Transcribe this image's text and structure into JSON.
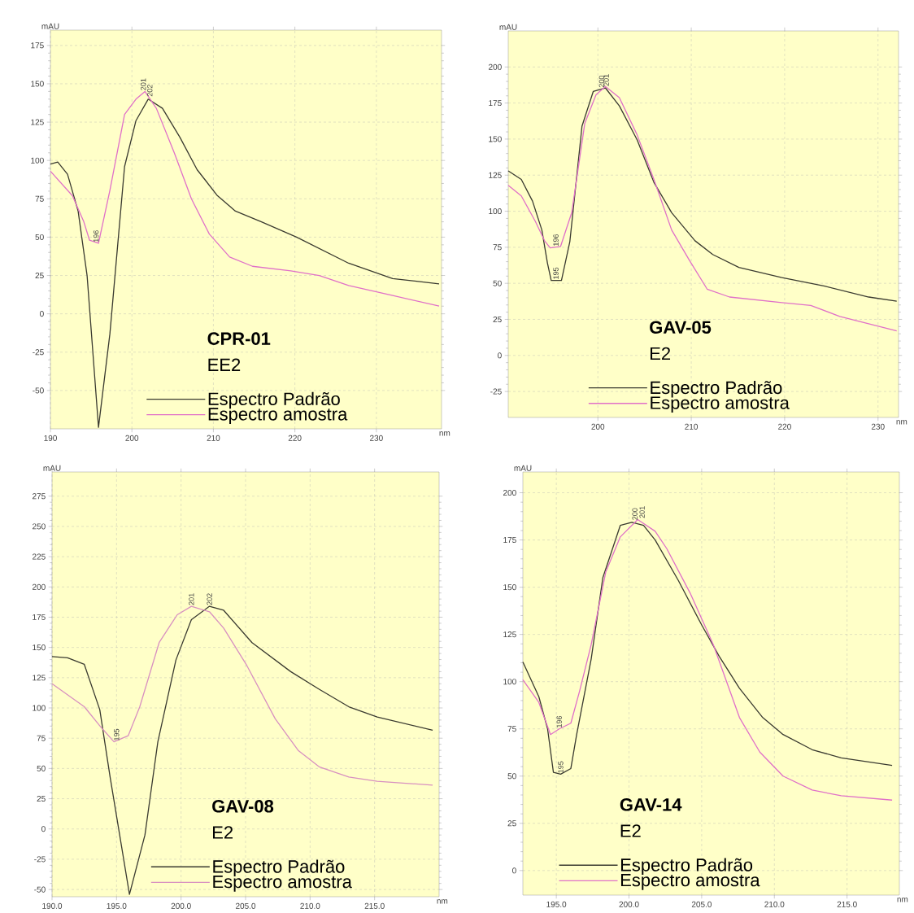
{
  "chart_data": [
    {
      "type": "line",
      "title": "CPR-01",
      "subtitle": "EE2",
      "xlabel": "nm",
      "ylabel": "mAU",
      "xlim": [
        190,
        238
      ],
      "ylim": [
        -75,
        185
      ],
      "xticks": [
        190,
        200,
        210,
        220,
        230
      ],
      "yticks": [
        -50,
        -25,
        0,
        25,
        50,
        75,
        100,
        125,
        150,
        175
      ],
      "grid": true,
      "legend": "bottom",
      "series": [
        {
          "name": "Espectro Padrão",
          "color": "#3a3a30",
          "x": [
            190,
            190.9,
            192.1,
            193.4,
            194.5,
            195.9,
            197.3,
            199.1,
            200.5,
            202,
            203.75,
            205.9,
            208,
            210.5,
            212.7,
            215.9,
            220.2,
            226.6,
            232,
            237.7
          ],
          "values": [
            97.7,
            99,
            91,
            67,
            25,
            -74,
            -13,
            96,
            126,
            140,
            134,
            115,
            94,
            77,
            67,
            60,
            50,
            33,
            23,
            19.5
          ]
        },
        {
          "name": "Espectro amostra",
          "color": "#e070c8",
          "x": [
            190,
            192.7,
            194.1,
            194.8,
            195.9,
            197.3,
            199.1,
            200.5,
            201.6,
            203,
            205.2,
            207.3,
            209.5,
            212,
            214.8,
            219.5,
            223,
            226.6,
            232,
            237.7
          ],
          "values": [
            93,
            77,
            60,
            48,
            46,
            80.5,
            130,
            140,
            145,
            134,
            105,
            75,
            52,
            37,
            31,
            28,
            25,
            18.5,
            12,
            5
          ]
        }
      ],
      "annotations": [
        {
          "text": "196",
          "x": 195.6,
          "y": 46
        },
        {
          "text": "201",
          "x": 201.4,
          "y": 145
        },
        {
          "text": "202",
          "x": 202.2,
          "y": 141
        }
      ]
    },
    {
      "type": "line",
      "title": "GAV-05",
      "subtitle": "E2",
      "xlabel": "nm",
      "ylabel": "mAU",
      "xlim": [
        190.4,
        232.2
      ],
      "ylim": [
        -43,
        225
      ],
      "xticks": [
        200,
        210,
        220,
        230
      ],
      "yticks": [
        -25,
        0,
        25,
        50,
        75,
        100,
        125,
        150,
        175,
        200
      ],
      "grid": true,
      "legend": "bottom",
      "series": [
        {
          "name": "Espectro Padrão",
          "color": "#3a3a30",
          "x": [
            190.4,
            191.8,
            193,
            194,
            194.6,
            195,
            196.1,
            197,
            198.3,
            199.5,
            200.8,
            202.3,
            204.2,
            206,
            207.9,
            210.4,
            212.3,
            215.1,
            219.7,
            224.3,
            229,
            232
          ],
          "values": [
            128,
            122,
            107,
            87,
            64,
            52,
            52,
            79,
            159,
            183,
            185.5,
            173,
            149.5,
            120,
            99,
            79.5,
            70,
            61,
            54,
            48,
            40.5,
            37.6
          ]
        },
        {
          "name": "Espectro amostra",
          "color": "#e070c8",
          "x": [
            190.4,
            191.8,
            193.3,
            194.3,
            194.9,
            196,
            197.2,
            198.6,
            199.8,
            200.8,
            202.3,
            204.2,
            206,
            207.9,
            209.8,
            211.7,
            214.1,
            219.7,
            222.8,
            225.9,
            232
          ],
          "values": [
            118,
            110.6,
            93,
            79.4,
            74.6,
            75.5,
            99,
            161,
            180.7,
            186.5,
            178.7,
            153,
            122,
            87,
            66,
            46,
            40.5,
            36.6,
            34.7,
            27,
            17
          ]
        }
      ],
      "annotations": [
        {
          "text": "196",
          "x": 195.5,
          "y": 75
        },
        {
          "text": "195",
          "x": 195.5,
          "y": 52
        },
        {
          "text": "200",
          "x": 200.4,
          "y": 185
        },
        {
          "text": "201",
          "x": 200.9,
          "y": 186
        }
      ]
    },
    {
      "type": "line",
      "title": "GAV-08",
      "subtitle": "E2",
      "xlabel": "nm",
      "ylabel": "mAU",
      "xlim": [
        190,
        220
      ],
      "ylim": [
        -56,
        295
      ],
      "xticks": [
        {
          "value": 190,
          "label": "190.0"
        },
        {
          "value": 195,
          "label": "195.0"
        },
        {
          "value": 200,
          "label": "200.0"
        },
        {
          "value": 205,
          "label": "205.0"
        },
        {
          "value": 210,
          "label": "210.0"
        },
        {
          "value": 215,
          "label": "215.0"
        }
      ],
      "yticks": [
        -50,
        -25,
        0,
        25,
        50,
        75,
        100,
        125,
        150,
        175,
        200,
        225,
        250,
        275
      ],
      "grid": true,
      "legend": "bottom",
      "series": [
        {
          "name": "Espectro Padrão",
          "color": "#3a3a30",
          "x": [
            190,
            191.2,
            192.5,
            193.7,
            194.5,
            196,
            197.2,
            198.2,
            199.6,
            200.8,
            202.2,
            203.3,
            205.5,
            208.5,
            210.7,
            213,
            215.2,
            219.5
          ],
          "values": [
            142.5,
            141.5,
            136,
            98.6,
            43,
            -54,
            -5,
            72,
            139.6,
            173,
            184,
            180.7,
            154,
            130,
            115.5,
            101,
            92.5,
            81.6
          ]
        },
        {
          "name": "Espectro amostra",
          "color": "#d890c0",
          "x": [
            190,
            192.5,
            193.8,
            194.8,
            195.9,
            196.8,
            198.3,
            199.7,
            200.8,
            202.2,
            203.3,
            205.1,
            207.3,
            209.1,
            210.7,
            213,
            215.2,
            219.5
          ],
          "values": [
            120,
            101,
            84,
            72,
            77,
            101,
            154,
            177,
            184,
            179.5,
            166,
            135,
            91,
            64.7,
            51.4,
            43,
            39.4,
            36.2
          ]
        }
      ],
      "annotations": [
        {
          "text": "195",
          "x": 195,
          "y": 72
        },
        {
          "text": "201",
          "x": 200.8,
          "y": 184
        },
        {
          "text": "202",
          "x": 202.2,
          "y": 184
        }
      ]
    },
    {
      "type": "line",
      "title": "GAV-14",
      "subtitle": "E2",
      "xlabel": "nm",
      "ylabel": "mAU",
      "xlim": [
        192.7,
        218.6
      ],
      "ylim": [
        -13,
        211
      ],
      "xticks": [
        {
          "value": 195,
          "label": "195.0"
        },
        {
          "value": 200,
          "label": "200.0"
        },
        {
          "value": 205,
          "label": "205.0"
        },
        {
          "value": 210,
          "label": "210.0"
        },
        {
          "value": 215,
          "label": "215.0"
        }
      ],
      "yticks": [
        0,
        25,
        50,
        75,
        100,
        125,
        150,
        175,
        200
      ],
      "grid": true,
      "legend": "bottom",
      "series": [
        {
          "name": "Espectro Padrão",
          "color": "#3a3a30",
          "x": [
            192.7,
            193.8,
            194.4,
            194.8,
            195.3,
            196,
            196.4,
            197.4,
            198.2,
            199.4,
            200.2,
            201,
            201.8,
            203.4,
            205,
            206.2,
            207.6,
            209.2,
            210.6,
            212.6,
            214.6,
            218.1
          ],
          "values": [
            110.4,
            92,
            75,
            52,
            51,
            54,
            72,
            112,
            155,
            182.7,
            184.3,
            182.7,
            175,
            153.5,
            130,
            113.5,
            96.5,
            81,
            72,
            64,
            59.6,
            55.7
          ]
        },
        {
          "name": "Espectro amostra",
          "color": "#e070c8",
          "x": [
            192.7,
            193.8,
            194.6,
            195.2,
            196,
            196.6,
            197.4,
            198.4,
            199.4,
            200.6,
            201.8,
            202.6,
            204.2,
            205.8,
            207.6,
            209,
            210.6,
            212.6,
            214.6,
            218.1
          ],
          "values": [
            101,
            89,
            72,
            75,
            78,
            95,
            119.6,
            158,
            176.6,
            185.8,
            179.6,
            170.4,
            147,
            119.6,
            81,
            62.7,
            50,
            42.6,
            39.6,
            37.3
          ]
        }
      ],
      "annotations": [
        {
          "text": "196",
          "x": 195.2,
          "y": 75
        },
        {
          "text": "195",
          "x": 195.3,
          "y": 51
        },
        {
          "text": "200",
          "x": 200.4,
          "y": 185
        },
        {
          "text": "201",
          "x": 200.9,
          "y": 186
        }
      ]
    }
  ]
}
